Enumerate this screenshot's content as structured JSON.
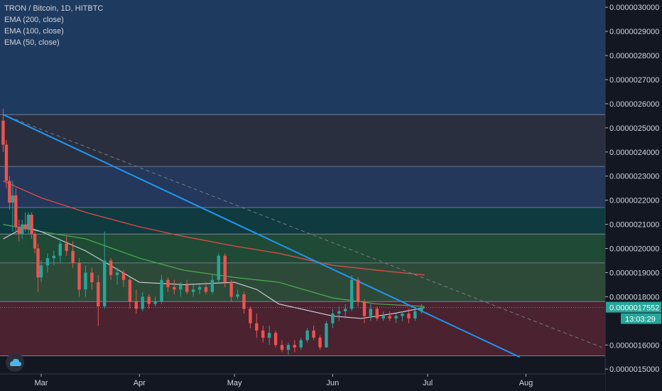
{
  "legend": {
    "symbol": "TRON / Bitcoin, 1D, HITBTC",
    "studies": [
      "EMA (200, close)",
      "EMA (100, close)",
      "EMA (50, close)"
    ]
  },
  "colors": {
    "background": "#131722",
    "candle_up": "#26a69a",
    "candle_down": "#ef5350",
    "trendline": "#2196f3",
    "dashed_line": "#787b86",
    "ema200": "#e04b4b",
    "ema100": "#4caf50",
    "ema50": "#d1d4dc",
    "price_label_bg": "#26a69a",
    "timer_label_bg": "#26a69a"
  },
  "price_axis": {
    "ticks": [
      "0.0000030000",
      "0.0000029000",
      "0.0000028000",
      "0.0000027000",
      "0.0000026000",
      "0.0000025000",
      "0.0000024000",
      "0.0000023000",
      "0.0000022000",
      "0.0000021000",
      "0.0000020000",
      "0.0000019000",
      "0.0000018000",
      "0.0000016000",
      "0.0000015000"
    ],
    "current_price": "0.0000017552",
    "countdown": "13:03:29"
  },
  "time_axis": {
    "labels": [
      "Mar",
      "Apr",
      "May",
      "Jun",
      "Jul",
      "Aug"
    ]
  },
  "chart_data": {
    "type": "candlestick",
    "title": "TRON / Bitcoin, 1D, HITBTC",
    "ylim": [
      1.48e-06,
      3.03e-06
    ],
    "x_range": [
      "Feb 16",
      "Aug 26"
    ],
    "zones": [
      {
        "from": 2.555e-06,
        "to": 3.03e-06,
        "color": "#1e3a5f"
      },
      {
        "from": 2.34e-06,
        "to": 2.555e-06,
        "color": "#2a2f3f"
      },
      {
        "from": 2.17e-06,
        "to": 2.34e-06,
        "color": "#23385a"
      },
      {
        "from": 2.06e-06,
        "to": 2.17e-06,
        "color": "#0f3a3f"
      },
      {
        "from": 1.94e-06,
        "to": 2.06e-06,
        "color": "#1f4a35"
      },
      {
        "from": 1.78e-06,
        "to": 1.94e-06,
        "color": "#2d4a38"
      },
      {
        "from": 1.555e-06,
        "to": 1.78e-06,
        "color": "#4a2230"
      }
    ],
    "levels": [
      2.555e-06,
      2.34e-06,
      2.17e-06,
      2.06e-06,
      1.94e-06,
      1.78e-06,
      1.555e-06
    ],
    "trendline": {
      "start": [
        "Feb 17",
        2.555e-06
      ],
      "end": [
        "Jul 30",
        1.55e-06
      ]
    },
    "dashed_line": {
      "start": [
        "Feb 17",
        2.555e-06
      ],
      "end": [
        "Aug 25",
        1.59e-06
      ]
    },
    "ema200": [
      [
        "Feb 17",
        2.28e-06
      ],
      [
        "Mar 1",
        2.21e-06
      ],
      [
        "Mar 15",
        2.15e-06
      ],
      [
        "Apr 1",
        2.09e-06
      ],
      [
        "Apr 15",
        2.05e-06
      ],
      [
        "May 1",
        2.01e-06
      ],
      [
        "May 15",
        1.98e-06
      ],
      [
        "Jun 1",
        1.93e-06
      ],
      [
        "Jun 15",
        1.91e-06
      ],
      [
        "Jun 30",
        1.89e-06
      ]
    ],
    "ema100": [
      [
        "Feb 17",
        2.1e-06
      ],
      [
        "Mar 1",
        2.07e-06
      ],
      [
        "Mar 15",
        2.04e-06
      ],
      [
        "Apr 1",
        1.96e-06
      ],
      [
        "Apr 15",
        1.91e-06
      ],
      [
        "May 1",
        1.88e-06
      ],
      [
        "May 15",
        1.86e-06
      ],
      [
        "Jun 1",
        1.795e-06
      ],
      [
        "Jun 15",
        1.77e-06
      ],
      [
        "Jun 30",
        1.76e-06
      ]
    ],
    "ema50": [
      [
        "Feb 17",
        2.04e-06
      ],
      [
        "Feb 24",
        2.09e-06
      ],
      [
        "Mar 1",
        2.07e-06
      ],
      [
        "Mar 15",
        1.99e-06
      ],
      [
        "Apr 1",
        1.86e-06
      ],
      [
        "Apr 15",
        1.85e-06
      ],
      [
        "May 1",
        1.86e-06
      ],
      [
        "May 8",
        1.83e-06
      ],
      [
        "May 15",
        1.77e-06
      ],
      [
        "Jun 1",
        1.72e-06
      ],
      [
        "Jun 10",
        1.71e-06
      ],
      [
        "Jun 20",
        1.73e-06
      ],
      [
        "Jun 30",
        1.755e-06
      ]
    ],
    "candles": [
      [
        "Feb 17",
        2.53e-06,
        2.58e-06,
        2.4e-06,
        2.43e-06
      ],
      [
        "Feb 18",
        2.43e-06,
        2.45e-06,
        2.25e-06,
        2.28e-06
      ],
      [
        "Feb 19",
        2.28e-06,
        2.3e-06,
        2.16e-06,
        2.19e-06
      ],
      [
        "Feb 20",
        2.19e-06,
        2.28e-06,
        2.07e-06,
        2.22e-06
      ],
      [
        "Feb 21",
        2.22e-06,
        2.25e-06,
        2.06e-06,
        2.09e-06
      ],
      [
        "Feb 22",
        2.09e-06,
        2.12e-06,
        2.03e-06,
        2.06e-06
      ],
      [
        "Feb 23",
        2.06e-06,
        2.12e-06,
        2.04e-06,
        2.1e-06
      ],
      [
        "Feb 24",
        2.1e-06,
        2.15e-06,
        2.07e-06,
        2.08e-06
      ],
      [
        "Feb 25",
        2.08e-06,
        2.15e-06,
        2.06e-06,
        2.14e-06
      ],
      [
        "Feb 26",
        2.14e-06,
        2.15e-06,
        2.04e-06,
        2.06e-06
      ],
      [
        "Feb 27",
        2.06e-06,
        2.07e-06,
        1.98e-06,
        2e-06
      ],
      [
        "Feb 28",
        2e-06,
        2.02e-06,
        1.82e-06,
        1.88e-06
      ],
      [
        "Mar 1",
        1.88e-06,
        1.95e-06,
        1.86e-06,
        1.93e-06
      ],
      [
        "Mar 3",
        1.93e-06,
        1.98e-06,
        1.9e-06,
        1.96e-06
      ],
      [
        "Mar 5",
        1.96e-06,
        1.99e-06,
        1.93e-06,
        1.97e-06
      ],
      [
        "Mar 7",
        1.97e-06,
        2.04e-06,
        1.94e-06,
        2.02e-06
      ],
      [
        "Mar 9",
        2.02e-06,
        2.05e-06,
        1.97e-06,
        1.99e-06
      ],
      [
        "Mar 11",
        1.99e-06,
        2.03e-06,
        1.92e-06,
        1.94e-06
      ],
      [
        "Mar 13",
        1.94e-06,
        1.96e-06,
        1.8e-06,
        1.83e-06
      ],
      [
        "Mar 15",
        1.83e-06,
        1.93e-06,
        1.8e-06,
        1.9e-06
      ],
      [
        "Mar 17",
        1.9e-06,
        1.92e-06,
        1.83e-06,
        1.86e-06
      ],
      [
        "Mar 19",
        1.86e-06,
        1.89e-06,
        1.68e-06,
        1.76e-06
      ],
      [
        "Mar 21",
        1.76e-06,
        2.07e-06,
        1.75e-06,
        1.95e-06
      ],
      [
        "Mar 23",
        1.95e-06,
        1.96e-06,
        1.87e-06,
        1.89e-06
      ],
      [
        "Mar 25",
        1.89e-06,
        1.92e-06,
        1.85e-06,
        1.9e-06
      ],
      [
        "Mar 27",
        1.9e-06,
        1.91e-06,
        1.84e-06,
        1.87e-06
      ],
      [
        "Mar 29",
        1.87e-06,
        1.88e-06,
        1.75e-06,
        1.78e-06
      ],
      [
        "Mar 31",
        1.78e-06,
        1.83e-06,
        1.73e-06,
        1.75e-06
      ],
      [
        "Apr 2",
        1.75e-06,
        1.82e-06,
        1.74e-06,
        1.8e-06
      ],
      [
        "Apr 4",
        1.8e-06,
        1.81e-06,
        1.75e-06,
        1.77e-06
      ],
      [
        "Apr 6",
        1.77e-06,
        1.8e-06,
        1.76e-06,
        1.78e-06
      ],
      [
        "Apr 8",
        1.78e-06,
        1.89e-06,
        1.77e-06,
        1.87e-06
      ],
      [
        "Apr 10",
        1.87e-06,
        1.88e-06,
        1.82e-06,
        1.84e-06
      ],
      [
        "Apr 12",
        1.84e-06,
        1.87e-06,
        1.81e-06,
        1.83e-06
      ],
      [
        "Apr 14",
        1.83e-06,
        1.86e-06,
        1.8e-06,
        1.85e-06
      ],
      [
        "Apr 16",
        1.85e-06,
        1.87e-06,
        1.81e-06,
        1.82e-06
      ],
      [
        "Apr 18",
        1.82e-06,
        1.85e-06,
        1.8e-06,
        1.83e-06
      ],
      [
        "Apr 20",
        1.83e-06,
        1.85e-06,
        1.81e-06,
        1.84e-06
      ],
      [
        "Apr 22",
        1.84e-06,
        1.86e-06,
        1.81e-06,
        1.82e-06
      ],
      [
        "Apr 24",
        1.82e-06,
        1.89e-06,
        1.81e-06,
        1.87e-06
      ],
      [
        "Apr 26",
        1.87e-06,
        1.98e-06,
        1.86e-06,
        1.97e-06
      ],
      [
        "Apr 28",
        1.97e-06,
        1.98e-06,
        1.84e-06,
        1.86e-06
      ],
      [
        "Apr 30",
        1.86e-06,
        1.87e-06,
        1.78e-06,
        1.8e-06
      ],
      [
        "May 2",
        1.8e-06,
        1.83e-06,
        1.79e-06,
        1.81e-06
      ],
      [
        "May 4",
        1.81e-06,
        1.82e-06,
        1.73e-06,
        1.75e-06
      ],
      [
        "May 6",
        1.75e-06,
        1.76e-06,
        1.67e-06,
        1.69e-06
      ],
      [
        "May 8",
        1.69e-06,
        1.73e-06,
        1.63e-06,
        1.66e-06
      ],
      [
        "May 10",
        1.66e-06,
        1.68e-06,
        1.61e-06,
        1.63e-06
      ],
      [
        "May 12",
        1.63e-06,
        1.68e-06,
        1.6e-06,
        1.65e-06
      ],
      [
        "May 14",
        1.65e-06,
        1.66e-06,
        1.59e-06,
        1.6e-06
      ],
      [
        "May 16",
        1.6e-06,
        1.62e-06,
        1.57e-06,
        1.58e-06
      ],
      [
        "May 18",
        1.58e-06,
        1.61e-06,
        1.56e-06,
        1.6e-06
      ],
      [
        "May 20",
        1.6e-06,
        1.62e-06,
        1.57e-06,
        1.59e-06
      ],
      [
        "May 22",
        1.59e-06,
        1.63e-06,
        1.58e-06,
        1.62e-06
      ],
      [
        "May 24",
        1.62e-06,
        1.67e-06,
        1.61e-06,
        1.66e-06
      ],
      [
        "May 26",
        1.66e-06,
        1.68e-06,
        1.62e-06,
        1.63e-06
      ],
      [
        "May 28",
        1.63e-06,
        1.64e-06,
        1.58e-06,
        1.59e-06
      ],
      [
        "May 30",
        1.59e-06,
        1.7e-06,
        1.59e-06,
        1.69e-06
      ],
      [
        "Jun 1",
        1.69e-06,
        1.75e-06,
        1.67e-06,
        1.73e-06
      ],
      [
        "Jun 3",
        1.73e-06,
        1.76e-06,
        1.7e-06,
        1.74e-06
      ],
      [
        "Jun 5",
        1.74e-06,
        1.77e-06,
        1.71e-06,
        1.75e-06
      ],
      [
        "Jun 7",
        1.75e-06,
        1.89e-06,
        1.74e-06,
        1.87e-06
      ],
      [
        "Jun 9",
        1.87e-06,
        1.88e-06,
        1.76e-06,
        1.78e-06
      ],
      [
        "Jun 11",
        1.78e-06,
        1.79e-06,
        1.69e-06,
        1.72e-06
      ],
      [
        "Jun 13",
        1.72e-06,
        1.77e-06,
        1.7e-06,
        1.75e-06
      ],
      [
        "Jun 15",
        1.75e-06,
        1.76e-06,
        1.7e-06,
        1.71e-06
      ],
      [
        "Jun 17",
        1.71e-06,
        1.74e-06,
        1.7e-06,
        1.72e-06
      ],
      [
        "Jun 19",
        1.72e-06,
        1.74e-06,
        1.7e-06,
        1.71e-06
      ],
      [
        "Jun 21",
        1.71e-06,
        1.73e-06,
        1.69e-06,
        1.72e-06
      ],
      [
        "Jun 23",
        1.72e-06,
        1.74e-06,
        1.7e-06,
        1.73e-06
      ],
      [
        "Jun 25",
        1.73e-06,
        1.75e-06,
        1.69e-06,
        1.71e-06
      ],
      [
        "Jun 27",
        1.71e-06,
        1.75e-06,
        1.7e-06,
        1.74e-06
      ],
      [
        "Jun 29",
        1.74e-06,
        1.77e-06,
        1.73e-06,
        1.7552e-06
      ]
    ]
  }
}
